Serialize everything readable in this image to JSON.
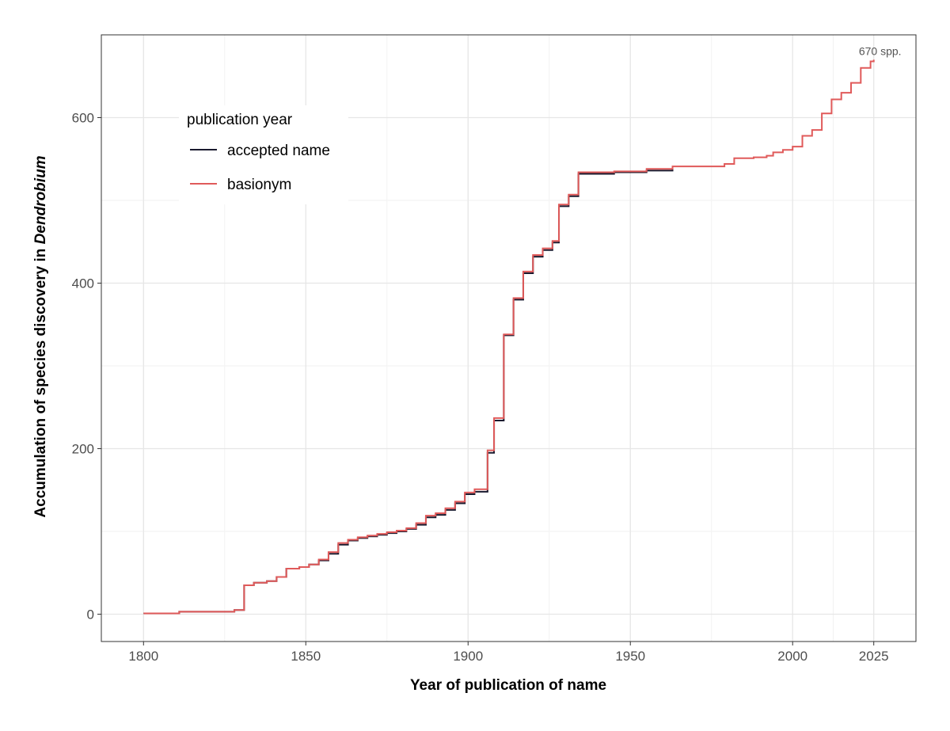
{
  "chart_data": {
    "type": "line",
    "step": true,
    "xlabel": "Year of publication of name",
    "ylabel_prefix": "Accumulation of species discovery in ",
    "ylabel_italic": "Dendrobium",
    "xlim": [
      1787,
      2038
    ],
    "ylim": [
      -33,
      700
    ],
    "x_ticks": [
      1800,
      1850,
      1900,
      1950,
      2000,
      2025
    ],
    "x_minor_ticks": [
      1825,
      1875,
      1925,
      1975,
      2012.5
    ],
    "y_ticks": [
      0,
      200,
      400,
      600
    ],
    "y_minor_ticks": [
      100,
      300,
      500
    ],
    "grid": true,
    "legend": {
      "title": "publication year",
      "position": "top-left",
      "entries": [
        {
          "name": "accepted name",
          "color": "#1a1a2e"
        },
        {
          "name": "basionym",
          "color": "#e05a5a"
        }
      ]
    },
    "annotation": {
      "text": "670 spp.",
      "x": 2025,
      "y": 670
    },
    "series": [
      {
        "name": "accepted name",
        "color": "#1a1a2e",
        "x": [
          1800,
          1811,
          1828,
          1831,
          1834,
          1838,
          1841,
          1844,
          1848,
          1851,
          1854,
          1857,
          1860,
          1863,
          1866,
          1869,
          1872,
          1875,
          1878,
          1881,
          1884,
          1887,
          1890,
          1893,
          1896,
          1899,
          1902,
          1906,
          1908,
          1911,
          1914,
          1917,
          1920,
          1923,
          1926,
          1928,
          1931,
          1934,
          1945,
          1955,
          1963
        ],
        "y": [
          1,
          3,
          5,
          35,
          38,
          40,
          45,
          55,
          57,
          60,
          65,
          73,
          84,
          89,
          92,
          94,
          96,
          98,
          100,
          103,
          108,
          117,
          120,
          126,
          134,
          145,
          148,
          195,
          234,
          337,
          380,
          412,
          432,
          440,
          449,
          493,
          505,
          532,
          534,
          536,
          539
        ]
      },
      {
        "name": "basionym",
        "color": "#e05a5a",
        "x": [
          1800,
          1811,
          1828,
          1831,
          1834,
          1838,
          1841,
          1844,
          1848,
          1851,
          1854,
          1857,
          1860,
          1863,
          1866,
          1869,
          1872,
          1875,
          1878,
          1881,
          1884,
          1887,
          1890,
          1893,
          1896,
          1899,
          1902,
          1906,
          1908,
          1911,
          1914,
          1917,
          1920,
          1923,
          1926,
          1928,
          1931,
          1934,
          1945,
          1955,
          1963,
          1979,
          1982,
          1988,
          1992,
          1994,
          1997,
          2000,
          2003,
          2006,
          2009,
          2012,
          2015,
          2018,
          2021,
          2024,
          2025
        ],
        "y": [
          1,
          3,
          5,
          35,
          38,
          40,
          45,
          55,
          57,
          60,
          66,
          75,
          86,
          90,
          93,
          95,
          97,
          99,
          101,
          104,
          110,
          119,
          122,
          128,
          136,
          147,
          151,
          198,
          237,
          338,
          382,
          414,
          434,
          442,
          451,
          495,
          507,
          534,
          535,
          538,
          541,
          544,
          551,
          552,
          554,
          558,
          561,
          565,
          578,
          585,
          605,
          622,
          630,
          642,
          660,
          668,
          670
        ]
      }
    ]
  }
}
